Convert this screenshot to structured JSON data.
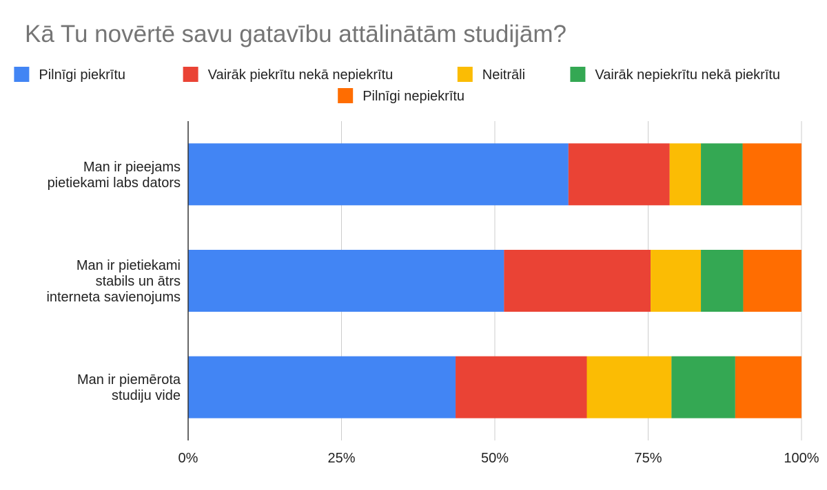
{
  "chart_data": {
    "type": "bar",
    "orientation": "horizontal",
    "stacked": "percent",
    "title": "Kā Tu novērtē savu gatavību attālinātām studijām?",
    "xlabel": "",
    "ylabel": "",
    "xlim": [
      0,
      100
    ],
    "x_ticks": [
      "0%",
      "25%",
      "50%",
      "75%",
      "100%"
    ],
    "grid": true,
    "legend_position": "top",
    "categories": [
      [
        "Man ir pieejams",
        "pietiekami labs dators"
      ],
      [
        "Man ir pietiekami",
        "stabils un ātrs",
        "interneta savienojums"
      ],
      [
        "Man ir piemērota",
        "studiju vide"
      ]
    ],
    "series": [
      {
        "name": "Pilnīgi piekrītu",
        "color": "#4285F4",
        "values": [
          62.0,
          51.5,
          43.6
        ]
      },
      {
        "name": "Vairāk piekrītu nekā nepiekrītu",
        "color": "#EA4335",
        "values": [
          16.5,
          23.9,
          21.4
        ]
      },
      {
        "name": "Neitrāli",
        "color": "#FBBC04",
        "values": [
          5.1,
          8.2,
          13.8
        ]
      },
      {
        "name": "Vairāk nepiekrītu nekā piekrītu",
        "color": "#34A853",
        "values": [
          6.8,
          6.9,
          10.4
        ]
      },
      {
        "name": "Pilnīgi nepiekrītu",
        "color": "#FF6D01",
        "values": [
          9.6,
          9.5,
          10.8
        ]
      }
    ]
  }
}
